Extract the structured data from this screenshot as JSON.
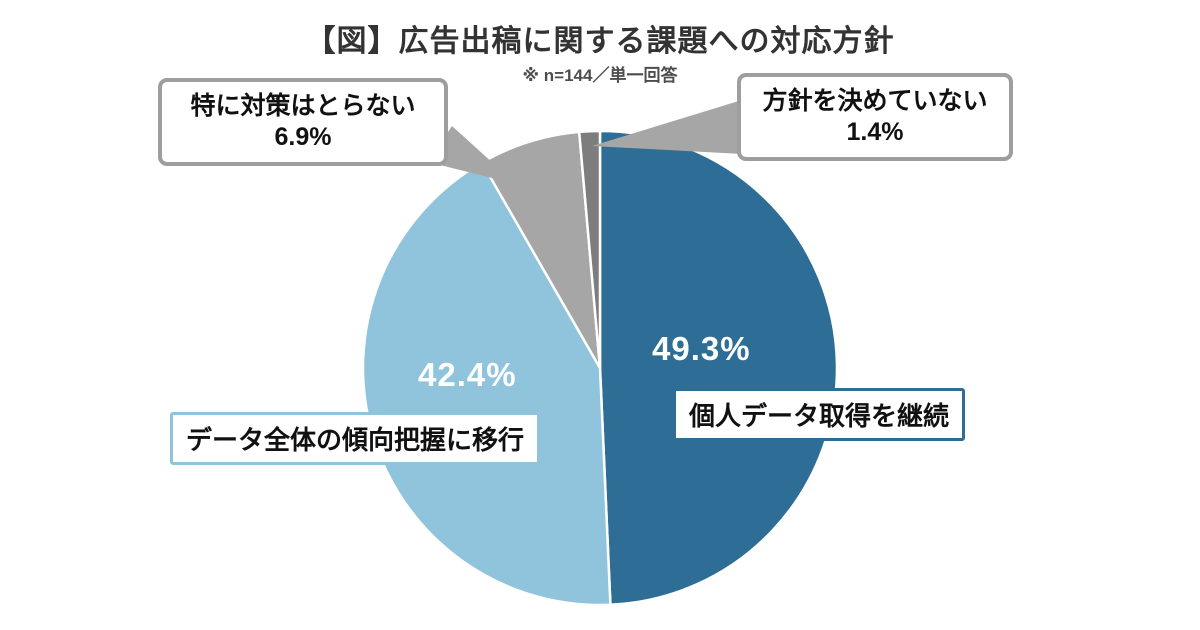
{
  "page": {
    "title": "【図】広告出稿に関する課題への対応方針",
    "note": "※ n=144／単一回答"
  },
  "chart_data": {
    "type": "pie",
    "title": "【図】広告出稿に関する課題への対応方針",
    "note": "※ n=144／単一回答",
    "unit": "%",
    "start_angle_deg": 0,
    "direction": "clockwise",
    "legend_position": "callouts-and-inline-labels",
    "slices": [
      {
        "id": "continue",
        "label": "個人データ取得を継続",
        "value": 49.3,
        "color": "#2e6e96"
      },
      {
        "id": "shift",
        "label": "データ全体の傾向把握に移行",
        "value": 42.4,
        "color": "#90c4dd"
      },
      {
        "id": "no-measures",
        "label": "特に対策はとらない",
        "value": 6.9,
        "color": "#a6a6a6"
      },
      {
        "id": "undecided",
        "label": "方針を決めていない",
        "value": 1.4,
        "color": "#7d7d7d"
      }
    ]
  },
  "callouts": {
    "no_measures": {
      "label": "特に対策はとらない",
      "pct": "6.9%"
    },
    "undecided": {
      "label": "方針を決めていない",
      "pct": "1.4%"
    }
  },
  "slice_labels": {
    "continue_pct": "49.3%",
    "continue_box": "個人データ取得を継続",
    "shift_pct": "42.4%",
    "shift_box": "データ全体の傾向把握に移行"
  },
  "colors": {
    "slice_continue": "#2e6e96",
    "slice_shift": "#90c4dd",
    "slice_no_measures": "#a6a6a6",
    "slice_undecided": "#7d7d7d",
    "callout_border": "#9e9e9e",
    "pointer": "#a6a6a6",
    "pct_text": "#ffffff",
    "title_text": "#333333"
  }
}
